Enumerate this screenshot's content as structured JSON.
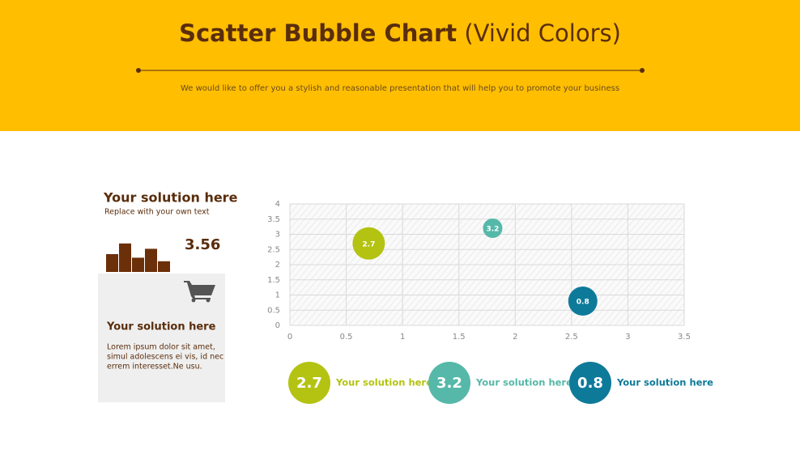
{
  "header": {
    "title_bold": "Scatter Bubble Chart",
    "title_light": "(Vivid Colors)",
    "subtitle": "We would like to offer you a stylish and reasonable presentation that will help you to promote your business"
  },
  "side_panel": {
    "title": "Your solution here",
    "subtitle": "Replace with your own text",
    "value": 3.56,
    "box_title": "Your solution here",
    "box_text": [
      "Lorem ipsum dolor sit amet,",
      "simul adolescens ei vis, id nec",
      "errem interesset.Ne usu."
    ]
  },
  "chart_data": [
    {
      "type": "bubble",
      "xlim": [
        0,
        3.5
      ],
      "ylim": [
        0,
        4
      ],
      "xticks": [
        0,
        0.5,
        1,
        1.5,
        2,
        2.5,
        3,
        3.5
      ],
      "yticks": [
        0,
        0.5,
        1,
        1.5,
        2,
        2.5,
        3,
        3.5,
        4
      ],
      "grid": true,
      "series": [
        {
          "name": "Your solution here",
          "color": "#b4c312",
          "x": [
            0.7
          ],
          "values": [
            2.7
          ],
          "sizes": [
            4
          ]
        },
        {
          "name": "Your solution here",
          "color": "#55b8a8",
          "x": [
            1.8
          ],
          "values": [
            3.2
          ],
          "sizes": [
            1.44
          ]
        },
        {
          "name": "Your solution here",
          "color": "#0e7a9a",
          "x": [
            2.6
          ],
          "values": [
            0.8
          ],
          "sizes": [
            3.24
          ]
        }
      ]
    },
    {
      "type": "bar",
      "values": [
        2,
        3.2,
        1.6,
        2.6,
        1.2
      ],
      "color": "#6b2f0a",
      "ylim": [
        0,
        4
      ]
    }
  ]
}
